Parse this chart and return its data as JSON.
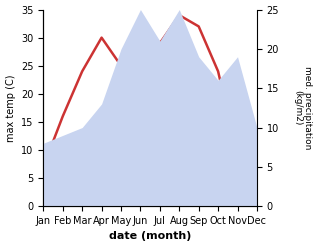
{
  "months": [
    "Jan",
    "Feb",
    "Mar",
    "Apr",
    "May",
    "Jun",
    "Jul",
    "Aug",
    "Sep",
    "Oct",
    "Nov",
    "Dec"
  ],
  "temperature": [
    7.0,
    16.0,
    24.0,
    30.0,
    25.0,
    33.0,
    29.0,
    34.0,
    32.0,
    24.0,
    9.0,
    7.5
  ],
  "precipitation": [
    8,
    9,
    10,
    13,
    20,
    25,
    21,
    25,
    19,
    16,
    19,
    10
  ],
  "temp_ylim": [
    0,
    35
  ],
  "precip_ylim": [
    0,
    25
  ],
  "temp_color": "#cc3333",
  "precip_fill_color": "#c8d4f0",
  "xlabel": "date (month)",
  "ylabel_left": "max temp (C)",
  "ylabel_right": "med. precipitation\n(kg/m2)",
  "bg_color": "#ffffff",
  "temp_yticks": [
    0,
    5,
    10,
    15,
    20,
    25,
    30,
    35
  ],
  "precip_yticks": [
    0,
    5,
    10,
    15,
    20,
    25
  ]
}
